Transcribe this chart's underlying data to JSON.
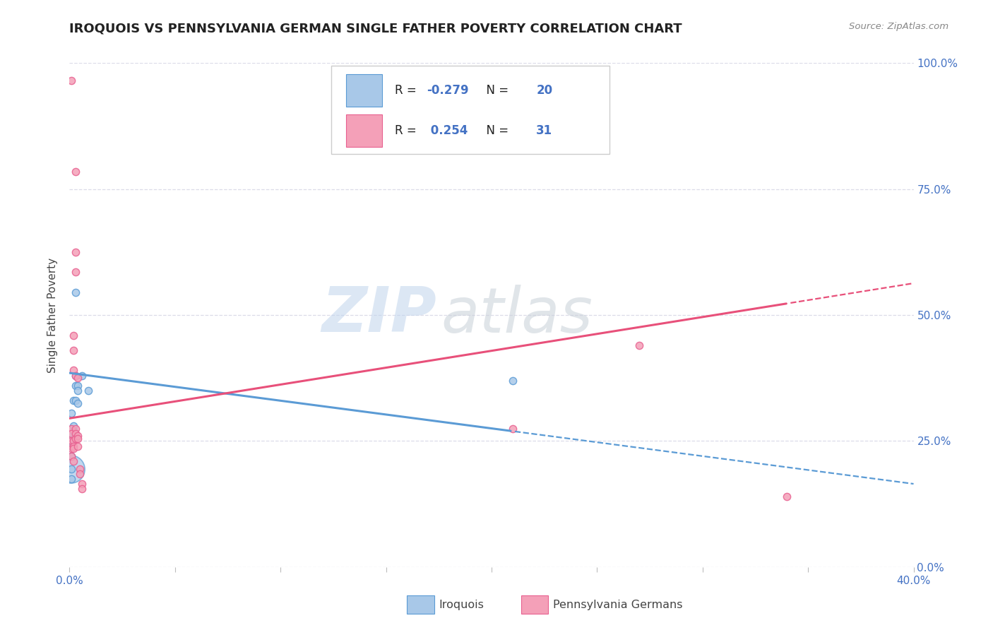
{
  "title": "IROQUOIS VS PENNSYLVANIA GERMAN SINGLE FATHER POVERTY CORRELATION CHART",
  "source": "Source: ZipAtlas.com",
  "ylabel_label": "Single Father Poverty",
  "r1": -0.279,
  "n1": 20,
  "r2": 0.254,
  "n2": 31,
  "color_blue": "#A8C8E8",
  "color_pink": "#F4A0B8",
  "color_blue_dark": "#5B9BD5",
  "color_pink_dark": "#E86090",
  "color_blue_line": "#5B9BD5",
  "color_pink_line": "#E8507A",
  "xlim": [
    0.0,
    0.4
  ],
  "ylim": [
    0.0,
    1.0
  ],
  "xticks": [
    0.0,
    0.05,
    0.1,
    0.15,
    0.2,
    0.25,
    0.3,
    0.35,
    0.4
  ],
  "yticks": [
    0.0,
    0.25,
    0.5,
    0.75,
    1.0
  ],
  "ytick_labels_right": [
    "0.0%",
    "25.0%",
    "50.0%",
    "75.0%",
    "100.0%"
  ],
  "xtick_labels": [
    "0.0%",
    "",
    "",
    "",
    "",
    "",
    "",
    "",
    "40.0%"
  ],
  "iroquois_points": [
    [
      0.001,
      0.305
    ],
    [
      0.001,
      0.265
    ],
    [
      0.001,
      0.24
    ],
    [
      0.001,
      0.22
    ],
    [
      0.001,
      0.195
    ],
    [
      0.002,
      0.33
    ],
    [
      0.002,
      0.28
    ],
    [
      0.002,
      0.27
    ],
    [
      0.002,
      0.255
    ],
    [
      0.003,
      0.545
    ],
    [
      0.003,
      0.38
    ],
    [
      0.003,
      0.36
    ],
    [
      0.003,
      0.33
    ],
    [
      0.004,
      0.36
    ],
    [
      0.004,
      0.35
    ],
    [
      0.004,
      0.325
    ],
    [
      0.006,
      0.38
    ],
    [
      0.009,
      0.35
    ],
    [
      0.21,
      0.37
    ],
    [
      0.001,
      0.175
    ]
  ],
  "iroquois_sizes": [
    55,
    55,
    55,
    55,
    55,
    55,
    55,
    55,
    55,
    55,
    55,
    55,
    55,
    55,
    55,
    55,
    55,
    55,
    55,
    55
  ],
  "iroquois_large_idx": -1,
  "iroquois_large_point": [
    0.0005,
    0.195
  ],
  "iroquois_large_size": 800,
  "pa_german_points": [
    [
      0.001,
      0.965
    ],
    [
      0.003,
      0.785
    ],
    [
      0.001,
      0.275
    ],
    [
      0.001,
      0.265
    ],
    [
      0.001,
      0.25
    ],
    [
      0.001,
      0.235
    ],
    [
      0.001,
      0.22
    ],
    [
      0.002,
      0.46
    ],
    [
      0.002,
      0.43
    ],
    [
      0.002,
      0.39
    ],
    [
      0.002,
      0.25
    ],
    [
      0.002,
      0.24
    ],
    [
      0.002,
      0.235
    ],
    [
      0.002,
      0.21
    ],
    [
      0.003,
      0.625
    ],
    [
      0.003,
      0.585
    ],
    [
      0.003,
      0.38
    ],
    [
      0.003,
      0.275
    ],
    [
      0.003,
      0.265
    ],
    [
      0.003,
      0.255
    ],
    [
      0.004,
      0.375
    ],
    [
      0.004,
      0.26
    ],
    [
      0.004,
      0.255
    ],
    [
      0.004,
      0.24
    ],
    [
      0.005,
      0.195
    ],
    [
      0.005,
      0.185
    ],
    [
      0.006,
      0.165
    ],
    [
      0.006,
      0.155
    ],
    [
      0.21,
      0.275
    ],
    [
      0.27,
      0.44
    ],
    [
      0.34,
      0.14
    ]
  ],
  "pa_german_sizes": [
    55,
    55,
    55,
    55,
    55,
    55,
    55,
    55,
    55,
    55,
    55,
    55,
    55,
    55,
    55,
    55,
    55,
    55,
    55,
    55,
    55,
    55,
    55,
    55,
    55,
    55,
    55,
    55,
    55,
    55,
    55
  ],
  "watermark_zip": "ZIP",
  "watermark_atlas": "atlas",
  "bg_color": "#FFFFFF",
  "grid_color": "#DCDCE8",
  "legend_label_blue": "Iroquois",
  "legend_label_pink": "Pennsylvania Germans",
  "title_color": "#222222",
  "source_color": "#888888",
  "axis_color": "#4472C4",
  "label_color": "#444444",
  "legend_text_color": "#222222"
}
